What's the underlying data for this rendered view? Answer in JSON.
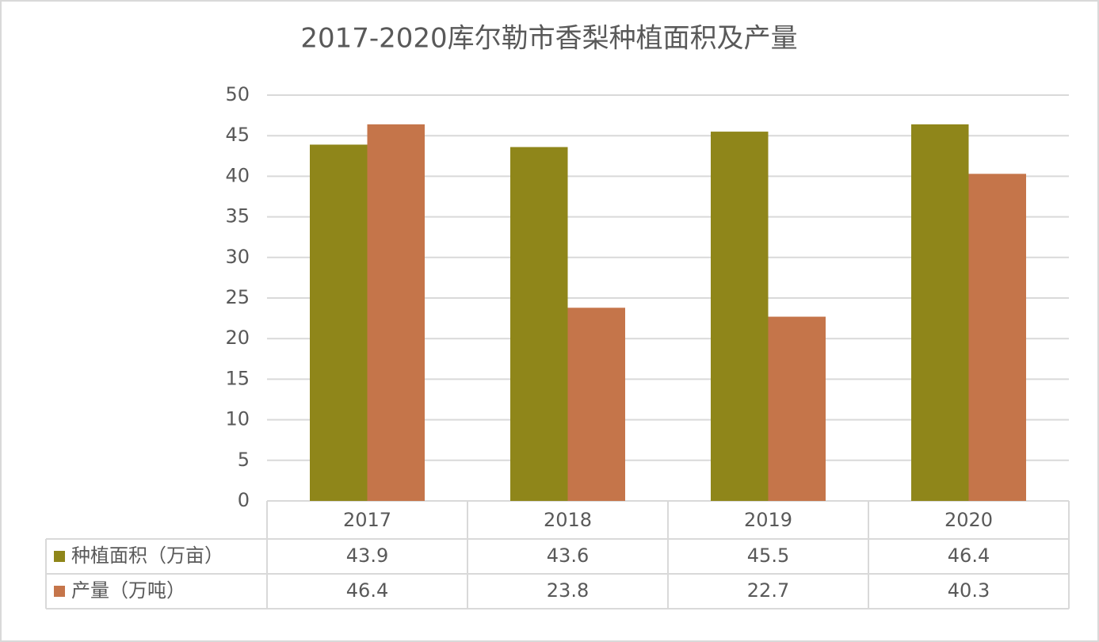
{
  "chart_data": {
    "type": "bar",
    "title": "2017-2020库尔勒市香梨种植面积及产量",
    "categories": [
      "2017",
      "2018",
      "2019",
      "2020"
    ],
    "series": [
      {
        "name": "种植面积（万亩）",
        "color": "#8f861a",
        "values": [
          43.9,
          43.6,
          45.5,
          46.4
        ]
      },
      {
        "name": "产量（万吨）",
        "color": "#c5754a",
        "values": [
          46.4,
          23.8,
          22.7,
          40.3
        ]
      }
    ],
    "ylim": [
      0,
      50
    ],
    "yticks": [
      0,
      5,
      10,
      15,
      20,
      25,
      30,
      35,
      40,
      45,
      50
    ],
    "grid": true
  }
}
